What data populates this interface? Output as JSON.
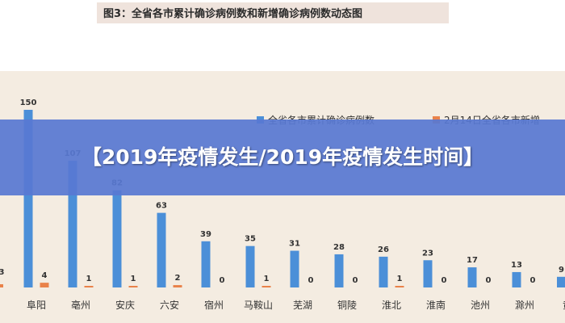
{
  "figure_title": "图3：全省各市累计确诊病例数和新增确诊病例数动态图",
  "overlay_title": "【2019年疫情发生/2019年疫情发生时间】",
  "colors": {
    "cumulative": "#4b8fd8",
    "new": "#e9824a",
    "label_text": "#333333"
  },
  "chart_data": {
    "type": "bar",
    "categories": [
      "阜阳",
      "亳州",
      "安庆",
      "六安",
      "宿州",
      "马鞍山",
      "芜湖",
      "铜陵",
      "淮北",
      "淮南",
      "池州",
      "滁州"
    ],
    "series": [
      {
        "name": "全省各市累计确诊病例数",
        "values": [
          150,
          107,
          82,
          63,
          39,
          35,
          31,
          28,
          26,
          23,
          17,
          13
        ]
      },
      {
        "name": "2月14日全省各市新增",
        "values": [
          4,
          1,
          1,
          2,
          0,
          1,
          0,
          0,
          1,
          0,
          0,
          0
        ]
      }
    ],
    "partial_left": {
      "cumulative_label": "3"
    },
    "partial_right": {
      "category": "黄",
      "cumulative_label": "9"
    },
    "ylim": [
      0,
      150
    ],
    "legend_position": "top-right",
    "grid": false
  }
}
